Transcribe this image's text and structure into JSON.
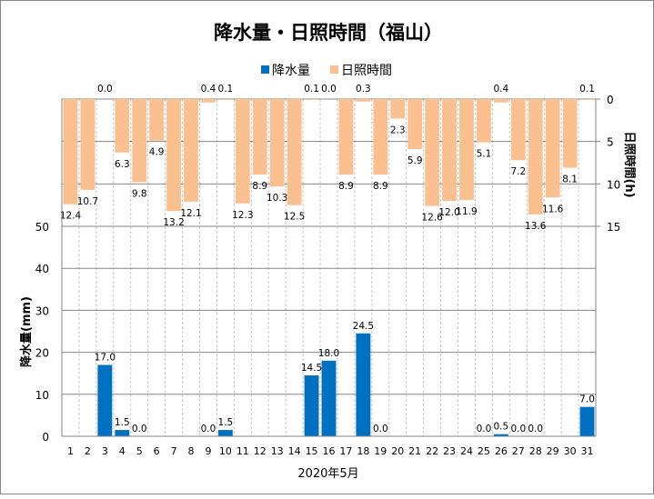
{
  "chart_data": {
    "type": "bar",
    "title": "降水量・日照時間（福山）",
    "xlabel": "2020年5月",
    "ylabel_left": "降水量(mm)",
    "ylabel_right": "日照時間(h)",
    "ylim_left": [
      0,
      50
    ],
    "yticks_left": [
      0,
      10,
      20,
      30,
      40,
      50
    ],
    "ylim_right": [
      0,
      15
    ],
    "yticks_right": [
      0,
      5,
      10,
      15
    ],
    "right_axis_inverted": true,
    "grid": true,
    "legend_position": "top",
    "categories": [
      "1",
      "2",
      "3",
      "4",
      "5",
      "6",
      "7",
      "8",
      "9",
      "10",
      "11",
      "12",
      "13",
      "14",
      "15",
      "16",
      "17",
      "18",
      "19",
      "20",
      "21",
      "22",
      "23",
      "24",
      "25",
      "26",
      "27",
      "28",
      "29",
      "30",
      "31"
    ],
    "series": [
      {
        "name": "降水量",
        "color": "#0070C0",
        "axis": "left",
        "values": [
          null,
          null,
          17.0,
          1.5,
          0.0,
          null,
          null,
          null,
          0.0,
          1.5,
          null,
          null,
          null,
          null,
          14.5,
          18.0,
          null,
          24.5,
          0.0,
          null,
          null,
          null,
          null,
          null,
          0.0,
          0.5,
          0.0,
          0.0,
          null,
          null,
          7.0
        ]
      },
      {
        "name": "日照時間",
        "color": "#FAC090",
        "axis": "right",
        "values": [
          12.4,
          10.7,
          0.0,
          6.3,
          9.8,
          4.9,
          13.2,
          12.1,
          0.4,
          0.1,
          12.3,
          8.9,
          10.3,
          12.5,
          0.1,
          0.0,
          8.9,
          0.3,
          8.9,
          2.3,
          5.9,
          12.6,
          12.0,
          11.9,
          5.1,
          0.4,
          7.2,
          13.6,
          11.6,
          8.1,
          0.1
        ]
      }
    ]
  }
}
